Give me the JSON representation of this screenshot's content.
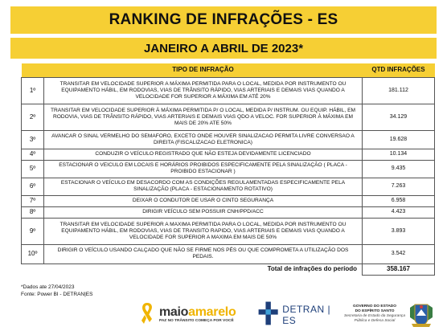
{
  "header": {
    "title": "RANKING DE INFRAÇÕES - ES",
    "subtitle": "JANEIRO A ABRIL DE 2023*"
  },
  "table": {
    "col_tipo": "TIPO DE INFRAÇÃO",
    "col_qtd": "QTD INFRAÇÕES",
    "rows": [
      {
        "pos": "1º",
        "tipo": "TRANSITAR EM VELOCIDADE SUPERIOR A MÁXIMA PERMITIDA PARA O LOCAL, MEDIDA POR INSTRUMENTO OU EQUIPAMENTO HÁBIL, EM RODOVIAS, VIAS DE TRÂNSITO RÁPIDO, VIAS ARTERIAIS E DEMAIS VIAS QUANDO A VELOCIDADE FOR SUPERIOR A MÁXIMA EM ATÉ 20%",
        "qtd": "181.112"
      },
      {
        "pos": "2º",
        "tipo": "TRANSITAR EM VELOCIDADE SUPERIOR À MÁXIMA PERMITIDA P/ O LOCAL, MEDIDA P/ INSTRUM. OU EQUIP. HÁBIL, EM RODOVIA, VIAS DE TRÂNSITO RÁPIDO, VIAS ARTERIAIS E DEMAIS VIAS QDO A VELOC. FOR SUPERIOR À MÁXIMA EM MAIS DE  20% ATE 50%",
        "qtd": "34.129"
      },
      {
        "pos": "3º",
        "tipo": "AVANCAR O SINAL VERMELHO DO SEMAFORO, EXCETO  ONDE HOUVER SINALIZACAO PERMITA LIVRE CONVERSAO A DIREITA (FISCALIZACAO ELETRONICA)",
        "qtd": "19.628"
      },
      {
        "pos": "4º",
        "tipo": "CONDUZIR O VEÍCULO REGISTRADO QUE NÃO ESTEJA DEVIDAMENTE LICENCIADO",
        "qtd": "10.134"
      },
      {
        "pos": "5º",
        "tipo": "ESTACIONAR O VEICULO EM LOCAIS E HORÁRIOS PROIBIDOS ESPECIFICAMENTE PELA SINALIZAÇÃO ( PLACA - PROIBIDO ESTACIONAR )",
        "qtd": "9.435"
      },
      {
        "pos": "6º",
        "tipo": "ESTACIONAR O VEÍCULO EM DESACORDO COM AS CONDIÇÕES REGULAMENTADAS ESPECIFICAMENTE PELA SINALIZAÇÃO (PLACA - ESTACIONAMENTO ROTATIVO)",
        "qtd": "7.263"
      },
      {
        "pos": "7º",
        "tipo": "DEIXAR O CONDUTOR DE USAR O CINTO SEGURANÇA",
        "qtd": "6.958"
      },
      {
        "pos": "8º",
        "tipo": "DIRIGIR VEÍCULO SEM POSSUIR CNH/PPD/ACC",
        "qtd": "4.423"
      },
      {
        "pos": "9º",
        "tipo": "TRANSITAR EM VELOCIDADE SUPERIOR A MAXIMA PERMITIDA PARA O LOCAL, MEDIDA POR INSTRUMENTO OU EQUIPAMENTO HÁBIL, EM RODOVIAS, VIAS DE TRANSITO RAPIDO, VIAS ARTERIAIS E DEMAIS VIAS QUANDO A VELOCIDADE FOR SUPERIOR A MAXIMA EM MAIS DE 50%",
        "qtd": "3.893"
      },
      {
        "pos": "10º",
        "tipo": "DIRIGIR O VEÍCULO USANDO CALÇADO QUE NÃO SE FIRME NOS PÉS OU QUE COMPROMETA A UTILIZAÇÃO DOS PEDAIS.",
        "qtd": "3.542"
      }
    ],
    "total_label": "Total de infrações do período",
    "total_value": "358.167"
  },
  "footer": {
    "note": "*Dados ate 27/04/2023",
    "source": "Fonte: Power BI - DETRAN|ES"
  },
  "logos": {
    "maio_word_1": "maio",
    "maio_word_2": "amarelo",
    "maio_slogan": "PAZ NO TRÂNSITO COMEÇA POR VOCÊ",
    "detran_text": "DETRAN | ES",
    "gov_line1": "GOVERNO DO ESTADO",
    "gov_line2": "DO ESPÍRITO SANTO",
    "gov_line3": "Secretaria de Estado da Segurança Pública e Defesa Social"
  },
  "colors": {
    "accent_yellow": "#f6cf34",
    "detran_blue": "#1e3f7a",
    "maio_yellow": "#f0b400"
  }
}
